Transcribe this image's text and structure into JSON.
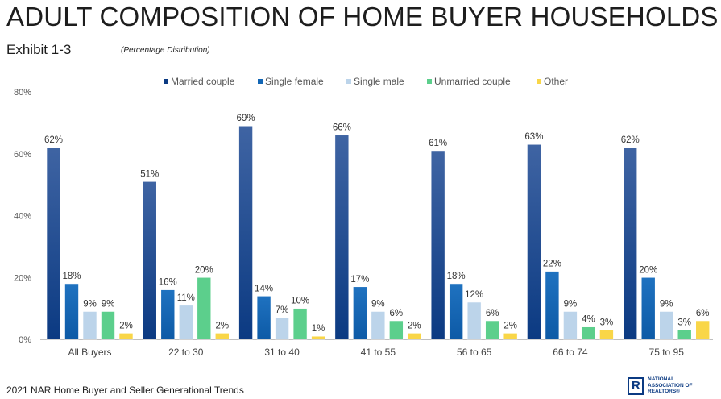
{
  "header": {
    "title": "ADULT COMPOSITION OF HOME BUYER HOUSEHOLDS",
    "exhibit": "Exhibit 1-3",
    "subtitle": "(Percentage Distribution)"
  },
  "footer": {
    "source": "2021 NAR Home Buyer and Seller Generational Trends",
    "logo_text": "NATIONAL\nASSOCIATION OF\nREALTORS®",
    "logo_letter": "R"
  },
  "chart_data": {
    "type": "bar",
    "categories": [
      "All Buyers",
      "22 to 30",
      "31 to 40",
      "41 to 55",
      "56 to 65",
      "66 to 74",
      "75 to 95"
    ],
    "series": [
      {
        "name": "Married couple",
        "color": "#0b3a82",
        "values": [
          62,
          51,
          69,
          66,
          61,
          63,
          62
        ]
      },
      {
        "name": "Single female",
        "color": "#1266b5",
        "values": [
          18,
          16,
          14,
          17,
          18,
          22,
          20
        ]
      },
      {
        "name": "Single male",
        "color": "#bcd4ea",
        "values": [
          9,
          11,
          7,
          9,
          12,
          9,
          9
        ]
      },
      {
        "name": "Unmarried couple",
        "color": "#5ccf8c",
        "values": [
          9,
          20,
          10,
          6,
          6,
          4,
          3
        ]
      },
      {
        "name": "Other",
        "color": "#f9d648",
        "values": [
          2,
          2,
          1,
          2,
          2,
          3,
          6
        ]
      }
    ],
    "ylim": [
      0,
      80
    ],
    "yticks": [
      "0%",
      "20%",
      "40%",
      "60%",
      "80%"
    ],
    "value_suffix": "%",
    "legend_position": "top",
    "grid": false
  }
}
